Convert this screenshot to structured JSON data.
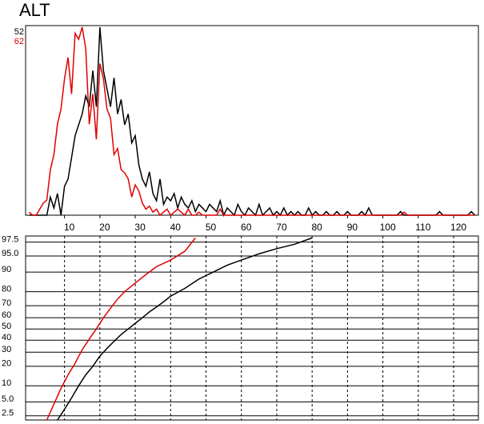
{
  "title": "ALT",
  "chart_data": [
    {
      "type": "line",
      "xlim": [
        -1,
        127
      ],
      "xticks": [
        10,
        20,
        30,
        40,
        50,
        60,
        70,
        80,
        90,
        100,
        110,
        120
      ],
      "x": [
        0,
        1,
        2,
        3,
        4,
        5,
        6,
        7,
        8,
        9,
        10,
        11,
        12,
        13,
        14,
        15,
        16,
        17,
        18,
        19,
        20,
        21,
        22,
        23,
        24,
        25,
        26,
        27,
        28,
        29,
        30,
        31,
        32,
        33,
        34,
        35,
        36,
        37,
        38,
        39,
        40,
        41,
        42,
        43,
        44,
        45,
        46,
        47,
        48,
        49,
        50,
        51,
        52,
        53,
        54,
        55,
        56,
        57,
        58,
        59,
        60,
        61,
        62,
        63,
        64,
        65,
        66,
        67,
        68,
        69,
        70,
        71,
        72,
        73,
        74,
        75,
        76,
        77,
        78,
        79,
        80,
        81,
        82,
        83,
        84,
        85,
        86,
        87,
        88,
        89,
        90,
        91,
        92,
        93,
        94,
        95,
        96,
        97,
        98,
        99,
        100,
        101,
        102,
        103,
        104,
        105,
        106,
        107,
        108,
        109,
        110,
        111,
        112,
        113,
        114,
        115,
        116,
        117,
        118,
        119,
        120,
        121,
        122,
        123,
        124,
        125,
        126
      ],
      "series": [
        {
          "color": "#000000",
          "ylim": [
            0,
            52
          ],
          "values": [
            0,
            0,
            0,
            0,
            0,
            0,
            5,
            2,
            6,
            0,
            8,
            10,
            16,
            22,
            25,
            28,
            33,
            30,
            40,
            30,
            52,
            40,
            35,
            30,
            38,
            28,
            32,
            25,
            28,
            20,
            22,
            14,
            10,
            8,
            12,
            6,
            4,
            10,
            3,
            5,
            4,
            6,
            2,
            5,
            3,
            2,
            4,
            1,
            3,
            2,
            1,
            3,
            2,
            1,
            4,
            0,
            2,
            1,
            0,
            3,
            1,
            0,
            2,
            1,
            0,
            3,
            0,
            1,
            2,
            0,
            1,
            0,
            2,
            0,
            1,
            0,
            1,
            0,
            0,
            2,
            0,
            1,
            0,
            0,
            1,
            0,
            0,
            1,
            0,
            0,
            1,
            0,
            0,
            0,
            1,
            0,
            2,
            0,
            0,
            0,
            0,
            0,
            0,
            0,
            0,
            1,
            0,
            0,
            0,
            0,
            0,
            0,
            0,
            0,
            0,
            0,
            1,
            0,
            0,
            0,
            0,
            0,
            0,
            0,
            0,
            1,
            0
          ]
        },
        {
          "color": "#e00000",
          "ylim": [
            0,
            62
          ],
          "values": [
            1,
            0,
            0,
            2,
            4,
            5,
            15,
            20,
            30,
            35,
            45,
            52,
            40,
            60,
            58,
            62,
            55,
            30,
            40,
            25,
            50,
            45,
            35,
            32,
            20,
            22,
            15,
            14,
            12,
            6,
            10,
            8,
            4,
            2,
            3,
            1,
            2,
            0,
            1,
            2,
            0,
            1,
            2,
            1,
            0,
            2,
            0,
            0,
            1,
            0,
            0,
            0,
            0,
            0,
            2,
            0,
            0,
            0,
            0,
            0,
            0,
            0,
            0,
            0,
            0,
            0,
            0,
            0,
            0,
            0,
            0,
            0,
            0,
            0,
            0,
            0,
            0,
            0,
            0,
            0,
            0,
            0,
            0,
            0,
            0,
            0,
            0,
            0,
            0,
            0,
            0,
            0,
            0,
            0,
            0,
            0,
            0,
            0,
            0,
            0,
            0,
            0,
            0,
            0,
            0,
            0,
            1,
            0,
            0,
            0,
            0,
            0,
            0,
            0,
            0,
            0,
            0,
            0,
            0,
            0,
            0,
            0,
            0,
            0,
            0,
            0,
            0
          ]
        }
      ]
    },
    {
      "type": "probability",
      "xlim": [
        -1,
        127
      ],
      "xgrid": [
        10,
        20,
        30,
        40,
        50,
        60,
        70,
        80,
        90,
        100,
        110,
        120
      ],
      "ylim": [
        2,
        98.2
      ],
      "yticks": [
        2.5,
        {
          "value": 5,
          "label": "5.0"
        },
        10,
        20,
        30,
        40,
        50,
        60,
        70,
        80,
        90,
        {
          "value": 95,
          "label": "95.0"
        },
        97.5
      ],
      "series": [
        {
          "color": "#000000",
          "x": [
            8,
            10,
            12,
            14,
            16,
            18,
            20,
            22,
            24,
            26,
            28,
            30,
            32,
            34,
            36,
            38,
            40,
            44,
            48,
            52,
            56,
            60,
            65,
            70,
            75,
            80
          ],
          "values": [
            2,
            3.5,
            6,
            10,
            15,
            20,
            27,
            33,
            39,
            45,
            50,
            55,
            60,
            65,
            69,
            73,
            77,
            82,
            87,
            90,
            92.5,
            94,
            95.5,
            96.5,
            97.2,
            98
          ]
        },
        {
          "color": "#e00000",
          "x": [
            5,
            7,
            9,
            11,
            13,
            15,
            17,
            19,
            21,
            23,
            25,
            27,
            30,
            33,
            36,
            40,
            44,
            47
          ],
          "values": [
            2,
            4.5,
            9,
            15,
            22,
            32,
            41,
            50,
            60,
            68,
            75,
            80,
            85,
            89,
            92,
            94,
            96,
            98
          ]
        }
      ]
    }
  ]
}
